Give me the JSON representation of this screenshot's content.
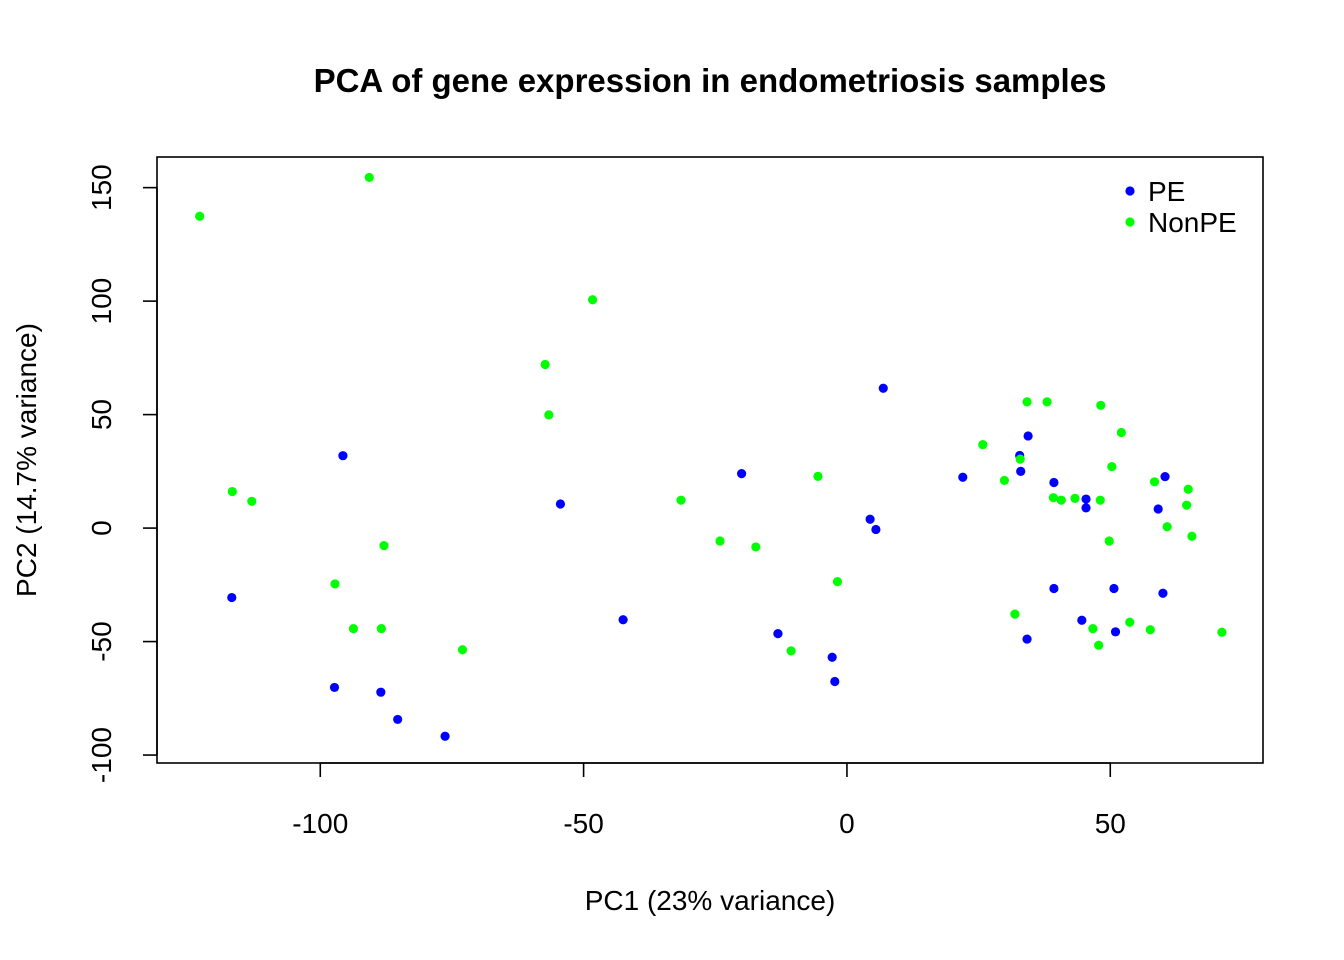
{
  "chart_data": {
    "type": "scatter",
    "title": "PCA of gene expression in endometriosis samples",
    "xlabel": "PC1 (23% variance)",
    "ylabel": "PC2 (14.7% variance)",
    "xlim": [
      -131,
      79
    ],
    "ylim": [
      -103.5,
      163.5
    ],
    "xticks": [
      -100,
      -50,
      0,
      50
    ],
    "yticks": [
      -100,
      -50,
      0,
      50,
      100,
      150
    ],
    "grid": false,
    "legend_position": "top-right",
    "series": [
      {
        "name": "PE",
        "color": "#0000ff",
        "points": [
          [
            -116.8,
            -30.6
          ],
          [
            -95.7,
            31.9
          ],
          [
            -97.3,
            -70.2
          ],
          [
            -88.5,
            -72.3
          ],
          [
            -85.3,
            -84.3
          ],
          [
            -76.3,
            -91.7
          ],
          [
            -54.4,
            10.6
          ],
          [
            -42.5,
            -40.4
          ],
          [
            -20.0,
            24.0
          ],
          [
            -13.1,
            -46.5
          ],
          [
            -2.8,
            -56.9
          ],
          [
            -2.3,
            -67.6
          ],
          [
            4.4,
            3.9
          ],
          [
            5.5,
            -0.6
          ],
          [
            6.9,
            61.6
          ],
          [
            22.0,
            22.4
          ],
          [
            32.8,
            32.0
          ],
          [
            33.0,
            25.0
          ],
          [
            34.2,
            -48.9
          ],
          [
            34.4,
            40.6
          ],
          [
            39.3,
            20.1
          ],
          [
            39.3,
            -26.6
          ],
          [
            44.6,
            -40.6
          ],
          [
            45.4,
            12.8
          ],
          [
            45.4,
            8.9
          ],
          [
            50.7,
            -26.6
          ],
          [
            51.0,
            -45.7
          ],
          [
            59.1,
            8.4
          ],
          [
            60.0,
            -28.7
          ],
          [
            60.4,
            22.7
          ]
        ]
      },
      {
        "name": "NonPE",
        "color": "#00ff00",
        "points": [
          [
            -122.9,
            137.4
          ],
          [
            -116.7,
            16.1
          ],
          [
            -113.0,
            11.8
          ],
          [
            -97.2,
            -24.6
          ],
          [
            -93.7,
            -44.3
          ],
          [
            -90.7,
            154.5
          ],
          [
            -88.4,
            -44.3
          ],
          [
            -87.9,
            -7.7
          ],
          [
            -73.0,
            -53.6
          ],
          [
            -57.3,
            72.1
          ],
          [
            -56.6,
            49.9
          ],
          [
            -48.3,
            100.6
          ],
          [
            -31.5,
            12.3
          ],
          [
            -24.1,
            -5.7
          ],
          [
            -17.3,
            -8.3
          ],
          [
            -10.6,
            -54.1
          ],
          [
            -5.5,
            22.8
          ],
          [
            -1.8,
            -23.6
          ],
          [
            25.8,
            36.8
          ],
          [
            29.9,
            21.0
          ],
          [
            31.9,
            -37.9
          ],
          [
            32.9,
            30.4
          ],
          [
            34.2,
            55.6
          ],
          [
            38.0,
            55.6
          ],
          [
            39.2,
            13.4
          ],
          [
            40.7,
            12.3
          ],
          [
            43.3,
            13.1
          ],
          [
            46.7,
            -44.3
          ],
          [
            47.8,
            -51.6
          ],
          [
            48.1,
            12.3
          ],
          [
            48.2,
            54.1
          ],
          [
            49.8,
            -5.7
          ],
          [
            50.3,
            27.1
          ],
          [
            52.1,
            42.1
          ],
          [
            53.7,
            -41.5
          ],
          [
            57.6,
            -44.8
          ],
          [
            58.4,
            20.4
          ],
          [
            60.8,
            0.6
          ],
          [
            64.5,
            10.1
          ],
          [
            64.8,
            17.1
          ],
          [
            65.5,
            -3.6
          ],
          [
            71.2,
            -45.9
          ]
        ]
      }
    ]
  }
}
